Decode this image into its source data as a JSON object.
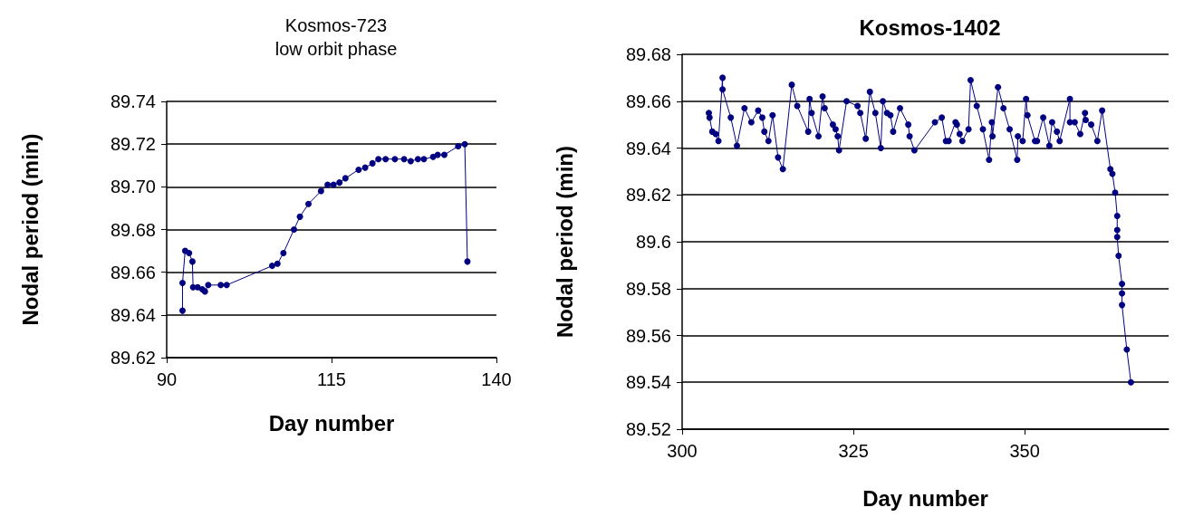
{
  "chart_data": [
    {
      "type": "line",
      "title": "Kosmos-723",
      "subtitle": "low orbit phase",
      "xlabel": "Day number",
      "ylabel": "Nodal period (min)",
      "xlim": [
        90,
        140
      ],
      "xticks": [
        90,
        115,
        140
      ],
      "ylim": [
        89.62,
        89.74
      ],
      "yticks": [
        89.62,
        89.64,
        89.66,
        89.68,
        {
          "value": 89.7,
          "label": "89.70"
        },
        89.72,
        89.74
      ],
      "grid": "y",
      "marker": "circle",
      "x": [
        92.4,
        92.4,
        92.8,
        93.4,
        93.9,
        94.0,
        94.7,
        95.4,
        95.8,
        96.3,
        98.2,
        99.1,
        106.0,
        106.8,
        107.7,
        109.3,
        110.2,
        111.5,
        113.4,
        114.4,
        115.3,
        116.2,
        117.1,
        119.1,
        120.1,
        121.2,
        122.1,
        123.2,
        124.6,
        126.0,
        127.0,
        128.1,
        129.0,
        130.4,
        131.1,
        132.1,
        134.2,
        135.2,
        135.6
      ],
      "series": [
        {
          "color": "#000080",
          "values": [
            89.642,
            89.655,
            89.67,
            89.669,
            89.665,
            89.653,
            89.653,
            89.652,
            89.651,
            89.654,
            89.654,
            89.654,
            89.663,
            89.664,
            89.669,
            89.68,
            89.686,
            89.692,
            89.698,
            89.701,
            89.701,
            89.702,
            89.704,
            89.708,
            89.709,
            89.711,
            89.713,
            89.713,
            89.713,
            89.713,
            89.712,
            89.713,
            89.713,
            89.714,
            89.715,
            89.715,
            89.719,
            89.72,
            89.665
          ]
        }
      ]
    },
    {
      "type": "line",
      "title": "Kosmos-1402",
      "xlabel": "Day number",
      "ylabel": "Nodal period (min)",
      "xlim": [
        300,
        371
      ],
      "xticks": [
        300,
        325,
        350
      ],
      "ylim": [
        89.52,
        89.68
      ],
      "yticks": [
        89.52,
        89.54,
        89.56,
        89.58,
        89.6,
        89.62,
        89.64,
        89.66,
        89.68
      ],
      "grid": "y",
      "marker": "circle",
      "x": [
        303.9,
        304.0,
        304.4,
        304.9,
        305.3,
        305.9,
        305.9,
        307.1,
        308.0,
        309.1,
        310.1,
        311.1,
        311.7,
        312.0,
        312.6,
        313.2,
        314.0,
        314.7,
        316.0,
        316.8,
        318.4,
        318.6,
        318.9,
        319.9,
        320.5,
        320.8,
        322.0,
        322.4,
        322.7,
        322.9,
        324.0,
        325.6,
        326.0,
        326.8,
        327.4,
        328.2,
        329.0,
        329.3,
        329.9,
        330.4,
        330.8,
        331.8,
        333.0,
        333.2,
        333.9,
        336.9,
        337.9,
        338.5,
        338.9,
        339.9,
        340.1,
        340.5,
        340.9,
        341.8,
        342.1,
        343.0,
        343.9,
        344.8,
        345.2,
        345.3,
        346.1,
        346.9,
        347.8,
        348.9,
        349.0,
        349.7,
        350.2,
        350.4,
        351.5,
        351.8,
        352.7,
        353.6,
        354.0,
        354.7,
        355.1,
        356.6,
        356.6,
        357.3,
        358.1,
        358.8,
        358.9,
        359.7,
        360.6,
        361.3,
        362.5,
        362.8,
        363.2,
        363.5,
        363.5,
        363.5,
        363.7,
        364.2,
        364.2,
        364.2,
        364.9,
        365.5
      ],
      "series": [
        {
          "color": "#000080",
          "values": [
            89.655,
            89.653,
            89.647,
            89.646,
            89.643,
            89.67,
            89.665,
            89.653,
            89.641,
            89.657,
            89.651,
            89.656,
            89.653,
            89.647,
            89.643,
            89.654,
            89.636,
            89.631,
            89.667,
            89.658,
            89.647,
            89.661,
            89.655,
            89.645,
            89.662,
            89.657,
            89.65,
            89.648,
            89.645,
            89.639,
            89.66,
            89.658,
            89.655,
            89.644,
            89.664,
            89.655,
            89.64,
            89.66,
            89.655,
            89.654,
            89.647,
            89.657,
            89.65,
            89.645,
            89.639,
            89.651,
            89.653,
            89.643,
            89.643,
            89.651,
            89.65,
            89.646,
            89.643,
            89.648,
            89.669,
            89.658,
            89.648,
            89.635,
            89.651,
            89.645,
            89.666,
            89.657,
            89.648,
            89.635,
            89.645,
            89.643,
            89.661,
            89.654,
            89.643,
            89.643,
            89.653,
            89.641,
            89.651,
            89.647,
            89.643,
            89.661,
            89.651,
            89.651,
            89.646,
            89.655,
            89.652,
            89.65,
            89.643,
            89.656,
            89.631,
            89.629,
            89.621,
            89.611,
            89.605,
            89.602,
            89.594,
            89.582,
            89.578,
            89.573,
            89.554,
            89.54
          ]
        }
      ]
    }
  ]
}
